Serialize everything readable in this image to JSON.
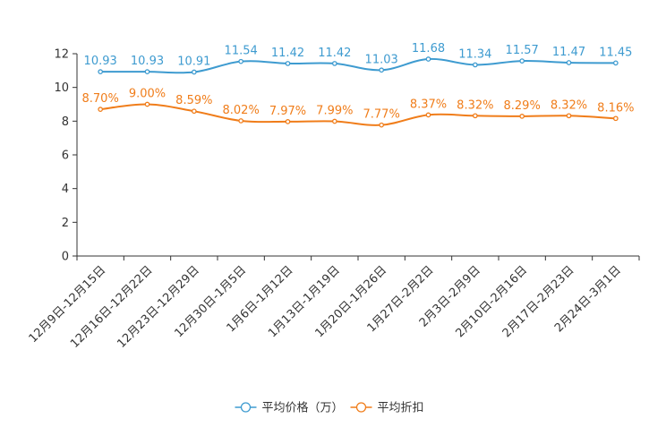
{
  "chart_data": {
    "type": "line",
    "title": "",
    "xlabel": "",
    "ylabel": "",
    "ylim": [
      0,
      12
    ],
    "yticks": [
      0,
      2,
      4,
      6,
      8,
      10,
      12
    ],
    "grid": false,
    "legend_position": "bottom-center",
    "categories": [
      "12月9日-12月15日",
      "12月16日-12月22日",
      "12月23日-12月29日",
      "12月30日-1月5日",
      "1月6日-1月12日",
      "1月13日-1月19日",
      "1月20日-1月26日",
      "1月27日-2月2日",
      "2月3日-2月9日",
      "2月10日-2月16日",
      "2月17日-2月23日",
      "2月24日-3月1日"
    ],
    "series": [
      {
        "name": "平均价格（万）",
        "color": "#3e9bd0",
        "values": [
          10.93,
          10.93,
          10.91,
          11.54,
          11.42,
          11.42,
          11.03,
          11.68,
          11.34,
          11.57,
          11.47,
          11.45
        ],
        "labels": [
          "10.93",
          "10.93",
          "10.91",
          "11.54",
          "11.42",
          "11.42",
          "11.03",
          "11.68",
          "11.34",
          "11.57",
          "11.47",
          "11.45"
        ]
      },
      {
        "name": "平均折扣",
        "color": "#f07d1a",
        "values": [
          8.7,
          9.0,
          8.59,
          8.02,
          7.97,
          7.99,
          7.77,
          8.37,
          8.32,
          8.29,
          8.32,
          8.16
        ],
        "labels": [
          "8.70%",
          "9.00%",
          "8.59%",
          "8.02%",
          "7.97%",
          "7.99%",
          "7.77%",
          "8.37%",
          "8.32%",
          "8.29%",
          "8.32%",
          "8.16%"
        ]
      }
    ]
  }
}
